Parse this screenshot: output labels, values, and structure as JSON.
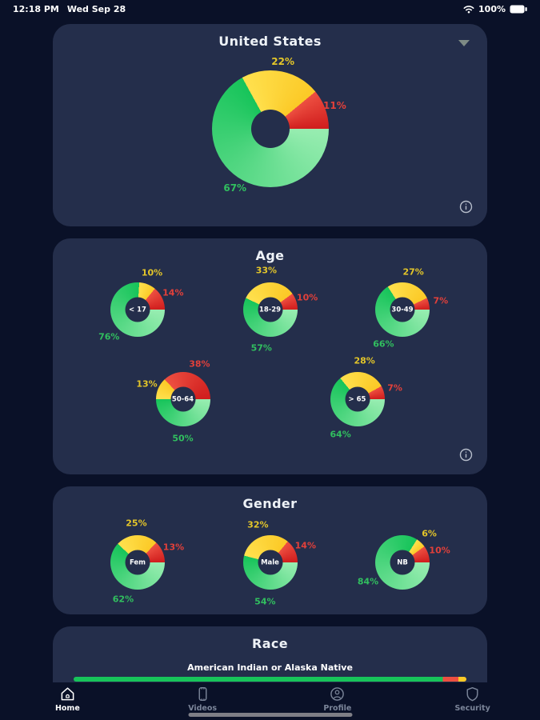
{
  "status_bar": {
    "time": "12:18 PM",
    "date": "Wed Sep 28",
    "battery_percent": "100%"
  },
  "colors": {
    "page_bg": "#0a1128",
    "card_bg": "#242e4b",
    "green": "#17c45a",
    "green_light": "#98edb1",
    "yellow": "#fbc926",
    "yellow_light": "#ffe04d",
    "red": "#d01d1d",
    "red_light": "#ed4f41",
    "green_text": "#31bf5f",
    "yellow_text": "#e4c629",
    "red_text": "#e2403a"
  },
  "cards": {
    "country": {
      "title": "United States",
      "chart": {
        "inner_label": "",
        "green": 67,
        "yellow": 22,
        "red": 11
      }
    },
    "age": {
      "title": "Age",
      "charts": [
        {
          "inner_label": "< 17",
          "green": 76,
          "yellow": 10,
          "red": 14
        },
        {
          "inner_label": "18-29",
          "green": 57,
          "yellow": 33,
          "red": 10
        },
        {
          "inner_label": "30-49",
          "green": 66,
          "yellow": 27,
          "red": 7
        },
        {
          "inner_label": "50-64",
          "green": 50,
          "yellow": 13,
          "red": 38
        },
        {
          "inner_label": "> 65",
          "green": 64,
          "yellow": 28,
          "red": 7
        }
      ]
    },
    "gender": {
      "title": "Gender",
      "charts": [
        {
          "inner_label": "Fem",
          "green": 62,
          "yellow": 25,
          "red": 13
        },
        {
          "inner_label": "Male",
          "green": 54,
          "yellow": 32,
          "red": 14
        },
        {
          "inner_label": "NB",
          "green": 84,
          "yellow": 6,
          "red": 10
        }
      ]
    },
    "race": {
      "title": "Race",
      "item_label": "American Indian or Alaska Native",
      "bar": {
        "green": 94,
        "red": 4,
        "yellow": 2
      }
    }
  },
  "tab_bar": {
    "items": [
      {
        "label": "Home",
        "icon": "home-icon",
        "active": true
      },
      {
        "label": "Videos",
        "icon": "videos-icon",
        "active": false
      },
      {
        "label": "Profile",
        "icon": "profile-icon",
        "active": false
      },
      {
        "label": "Security",
        "icon": "security-icon",
        "active": false
      }
    ]
  },
  "chart_data": [
    {
      "type": "pie",
      "title": "United States",
      "slices": [
        {
          "label": "green",
          "value": 67
        },
        {
          "label": "yellow",
          "value": 22
        },
        {
          "label": "red",
          "value": 11
        }
      ],
      "unit": "%"
    },
    {
      "type": "pie",
      "title": "< 17",
      "slices": [
        {
          "label": "green",
          "value": 76
        },
        {
          "label": "yellow",
          "value": 10
        },
        {
          "label": "red",
          "value": 14
        }
      ],
      "unit": "%"
    },
    {
      "type": "pie",
      "title": "18-29",
      "slices": [
        {
          "label": "green",
          "value": 57
        },
        {
          "label": "yellow",
          "value": 33
        },
        {
          "label": "red",
          "value": 10
        }
      ],
      "unit": "%"
    },
    {
      "type": "pie",
      "title": "30-49",
      "slices": [
        {
          "label": "green",
          "value": 66
        },
        {
          "label": "yellow",
          "value": 27
        },
        {
          "label": "red",
          "value": 7
        }
      ],
      "unit": "%"
    },
    {
      "type": "pie",
      "title": "50-64",
      "slices": [
        {
          "label": "green",
          "value": 50
        },
        {
          "label": "yellow",
          "value": 13
        },
        {
          "label": "red",
          "value": 38
        }
      ],
      "unit": "%"
    },
    {
      "type": "pie",
      "title": "> 65",
      "slices": [
        {
          "label": "green",
          "value": 64
        },
        {
          "label": "yellow",
          "value": 28
        },
        {
          "label": "red",
          "value": 7
        }
      ],
      "unit": "%"
    },
    {
      "type": "pie",
      "title": "Fem",
      "slices": [
        {
          "label": "green",
          "value": 62
        },
        {
          "label": "yellow",
          "value": 25
        },
        {
          "label": "red",
          "value": 13
        }
      ],
      "unit": "%"
    },
    {
      "type": "pie",
      "title": "Male",
      "slices": [
        {
          "label": "green",
          "value": 54
        },
        {
          "label": "yellow",
          "value": 32
        },
        {
          "label": "red",
          "value": 14
        }
      ],
      "unit": "%"
    },
    {
      "type": "pie",
      "title": "NB",
      "slices": [
        {
          "label": "green",
          "value": 84
        },
        {
          "label": "yellow",
          "value": 6
        },
        {
          "label": "red",
          "value": 10
        }
      ],
      "unit": "%"
    },
    {
      "type": "bar",
      "title": "American Indian or Alaska Native",
      "orientation": "horizontal-stacked",
      "slices": [
        {
          "label": "green",
          "value": 94
        },
        {
          "label": "red",
          "value": 4
        },
        {
          "label": "yellow",
          "value": 2
        }
      ],
      "unit": "%"
    }
  ]
}
